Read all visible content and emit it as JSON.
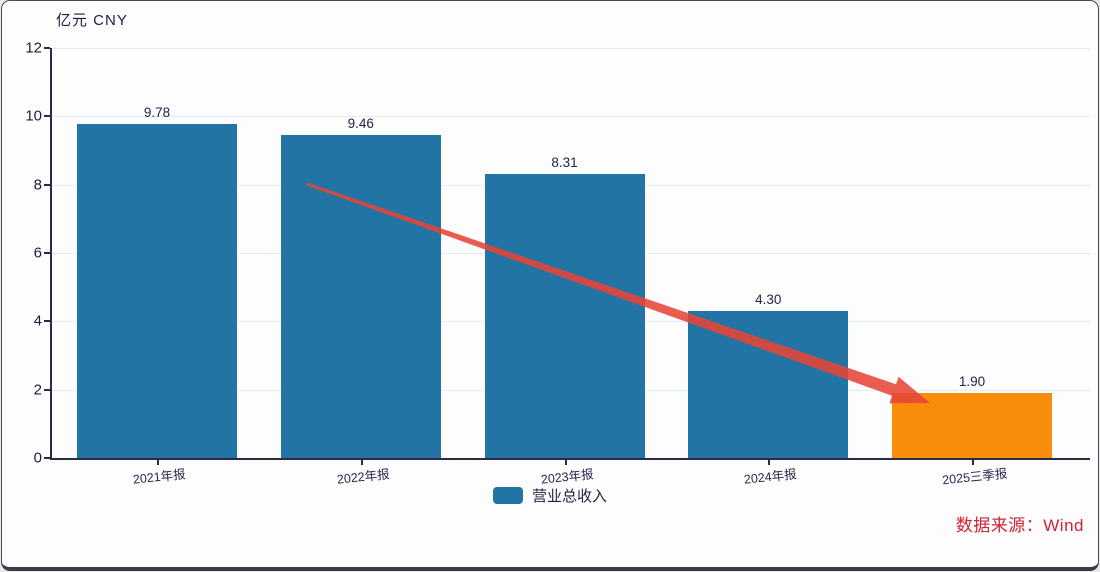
{
  "header": {
    "unit_label": "亿元 CNY"
  },
  "chart_data": {
    "type": "bar",
    "title": "",
    "ylabel": "亿元 CNY",
    "categories": [
      "2021年报",
      "2022年报",
      "2023年报",
      "2024年报",
      "2025三季报"
    ],
    "values": [
      9.78,
      9.46,
      8.31,
      4.3,
      1.9
    ],
    "value_labels": [
      "9.78",
      "9.46",
      "8.31",
      "4.30",
      "1.90"
    ],
    "series_name": "营业总收入",
    "bar_colors": [
      "#2274a5",
      "#2274a5",
      "#2274a5",
      "#2274a5",
      "#f78d0a"
    ],
    "ylim": [
      0,
      12
    ],
    "yticks": [
      0,
      2,
      4,
      6,
      8,
      10,
      12
    ],
    "grid": "faint horizontal gridlines at each y tick",
    "legend": {
      "label": "营业总收入",
      "swatch_color": "#2274a5",
      "position": "bottom-center"
    },
    "annotation": {
      "kind": "downward-trend-arrow",
      "color": "#e64538"
    }
  },
  "footer": {
    "source_label": "数据来源：Wind"
  }
}
